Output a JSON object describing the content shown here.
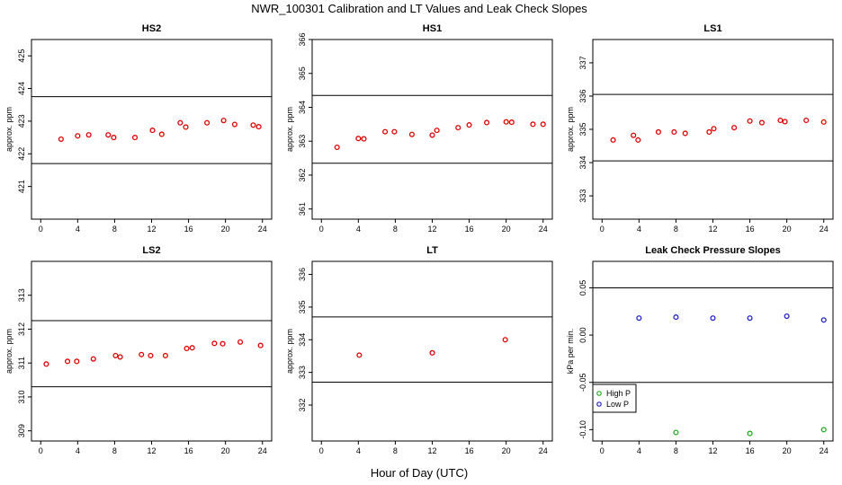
{
  "title": "NWR_100301  Calibration and LT Values and Leak Check Slopes",
  "xlabel": "Hour of Day (UTC)",
  "chart_data": [
    {
      "type": "scatter",
      "title": "HS2",
      "ylabel": "approx. ppm",
      "xlim": [
        -1,
        25
      ],
      "ylim": [
        420,
        425.5
      ],
      "xticks": [
        0,
        4,
        8,
        12,
        16,
        20,
        24
      ],
      "yticks": [
        421,
        422,
        423,
        424,
        425
      ],
      "hlines": [
        423.75,
        421.7
      ],
      "series": [
        {
          "color": "#dd0000",
          "x": [
            2.2,
            4.0,
            5.2,
            7.3,
            7.9,
            10.2,
            12.1,
            13.1,
            15.1,
            15.7,
            18.0,
            19.8,
            21.0,
            23.0,
            23.6
          ],
          "y": [
            422.45,
            422.55,
            422.58,
            422.58,
            422.5,
            422.5,
            422.72,
            422.6,
            422.95,
            422.82,
            422.95,
            423.02,
            422.9,
            422.88,
            422.83
          ]
        }
      ]
    },
    {
      "type": "scatter",
      "title": "HS1",
      "ylabel": "approx. ppm",
      "xlim": [
        -1,
        25
      ],
      "ylim": [
        360.7,
        366
      ],
      "xticks": [
        0,
        4,
        8,
        12,
        16,
        20,
        24
      ],
      "yticks": [
        361,
        362,
        363,
        364,
        365,
        366
      ],
      "hlines": [
        364.35,
        362.35
      ],
      "series": [
        {
          "color": "#dd0000",
          "x": [
            1.7,
            4.0,
            4.6,
            6.9,
            7.9,
            9.8,
            12.0,
            12.5,
            14.8,
            16.0,
            17.9,
            20.0,
            20.6,
            22.9,
            24.0
          ],
          "y": [
            362.82,
            363.08,
            363.07,
            363.28,
            363.28,
            363.2,
            363.18,
            363.32,
            363.4,
            363.48,
            363.55,
            363.57,
            363.56,
            363.5,
            363.5
          ]
        }
      ]
    },
    {
      "type": "scatter",
      "title": "LS1",
      "ylabel": "approx. ppm",
      "xlim": [
        -1,
        25
      ],
      "ylim": [
        332.3,
        337.7
      ],
      "xticks": [
        0,
        4,
        8,
        12,
        16,
        20,
        24
      ],
      "yticks": [
        333,
        334,
        335,
        336,
        337
      ],
      "hlines": [
        336.05,
        334.05
      ],
      "series": [
        {
          "color": "#dd0000",
          "x": [
            1.2,
            3.4,
            3.9,
            6.1,
            7.8,
            9.0,
            11.6,
            12.1,
            14.3,
            16.0,
            17.3,
            19.3,
            19.8,
            22.1,
            24.0
          ],
          "y": [
            334.68,
            334.82,
            334.68,
            334.92,
            334.92,
            334.88,
            334.92,
            335.02,
            335.05,
            335.25,
            335.2,
            335.27,
            335.23,
            335.27,
            335.22
          ]
        }
      ]
    },
    {
      "type": "scatter",
      "title": "LS2",
      "ylabel": "approx. ppm",
      "xlim": [
        -1,
        25
      ],
      "ylim": [
        308.7,
        314
      ],
      "xticks": [
        0,
        4,
        8,
        12,
        16,
        20,
        24
      ],
      "yticks": [
        309,
        310,
        311,
        312,
        313
      ],
      "hlines": [
        312.25,
        310.3
      ],
      "series": [
        {
          "color": "#dd0000",
          "x": [
            0.6,
            2.9,
            3.9,
            5.7,
            8.1,
            8.6,
            10.9,
            11.9,
            13.5,
            15.8,
            16.4,
            18.8,
            19.7,
            21.6,
            23.8
          ],
          "y": [
            310.97,
            311.05,
            311.05,
            311.12,
            311.22,
            311.18,
            311.25,
            311.22,
            311.22,
            311.43,
            311.45,
            311.58,
            311.57,
            311.62,
            311.52
          ]
        }
      ]
    },
    {
      "type": "scatter",
      "title": "LT",
      "ylabel": "approx. ppm",
      "xlim": [
        -1,
        25
      ],
      "ylim": [
        330.9,
        336.4
      ],
      "xticks": [
        0,
        4,
        8,
        12,
        16,
        20,
        24
      ],
      "yticks": [
        332,
        333,
        334,
        335,
        336
      ],
      "hlines": [
        334.7,
        332.7
      ],
      "series": [
        {
          "color": "#dd0000",
          "x": [
            4.1,
            12.0,
            19.9
          ],
          "y": [
            333.53,
            333.6,
            334.0
          ]
        }
      ]
    },
    {
      "type": "scatter",
      "title": "Leak Check Pressure Slopes",
      "ylabel": "kPa per min.",
      "xlim": [
        -1,
        25
      ],
      "ylim": [
        -0.112,
        0.078
      ],
      "xticks": [
        0,
        4,
        8,
        12,
        16,
        20,
        24
      ],
      "yticks": [
        -0.1,
        -0.05,
        0,
        0.05
      ],
      "ytick_labels": [
        "-0.10",
        "-0.05",
        "0.00",
        "0.05"
      ],
      "hlines": [
        0.05,
        -0.05
      ],
      "legend": {
        "position": "left",
        "entries": [
          "High P",
          "Low P"
        ]
      },
      "series": [
        {
          "name": "High P",
          "color": "#22aa22",
          "x": [
            8.0,
            16.0,
            24.0
          ],
          "y": [
            -0.103,
            -0.104,
            -0.1
          ]
        },
        {
          "name": "Low P",
          "color": "#2222cc",
          "x": [
            4.0,
            8.0,
            12.0,
            16.0,
            20.0,
            24.0
          ],
          "y": [
            0.018,
            0.019,
            0.018,
            0.018,
            0.02,
            0.016
          ]
        }
      ]
    }
  ]
}
